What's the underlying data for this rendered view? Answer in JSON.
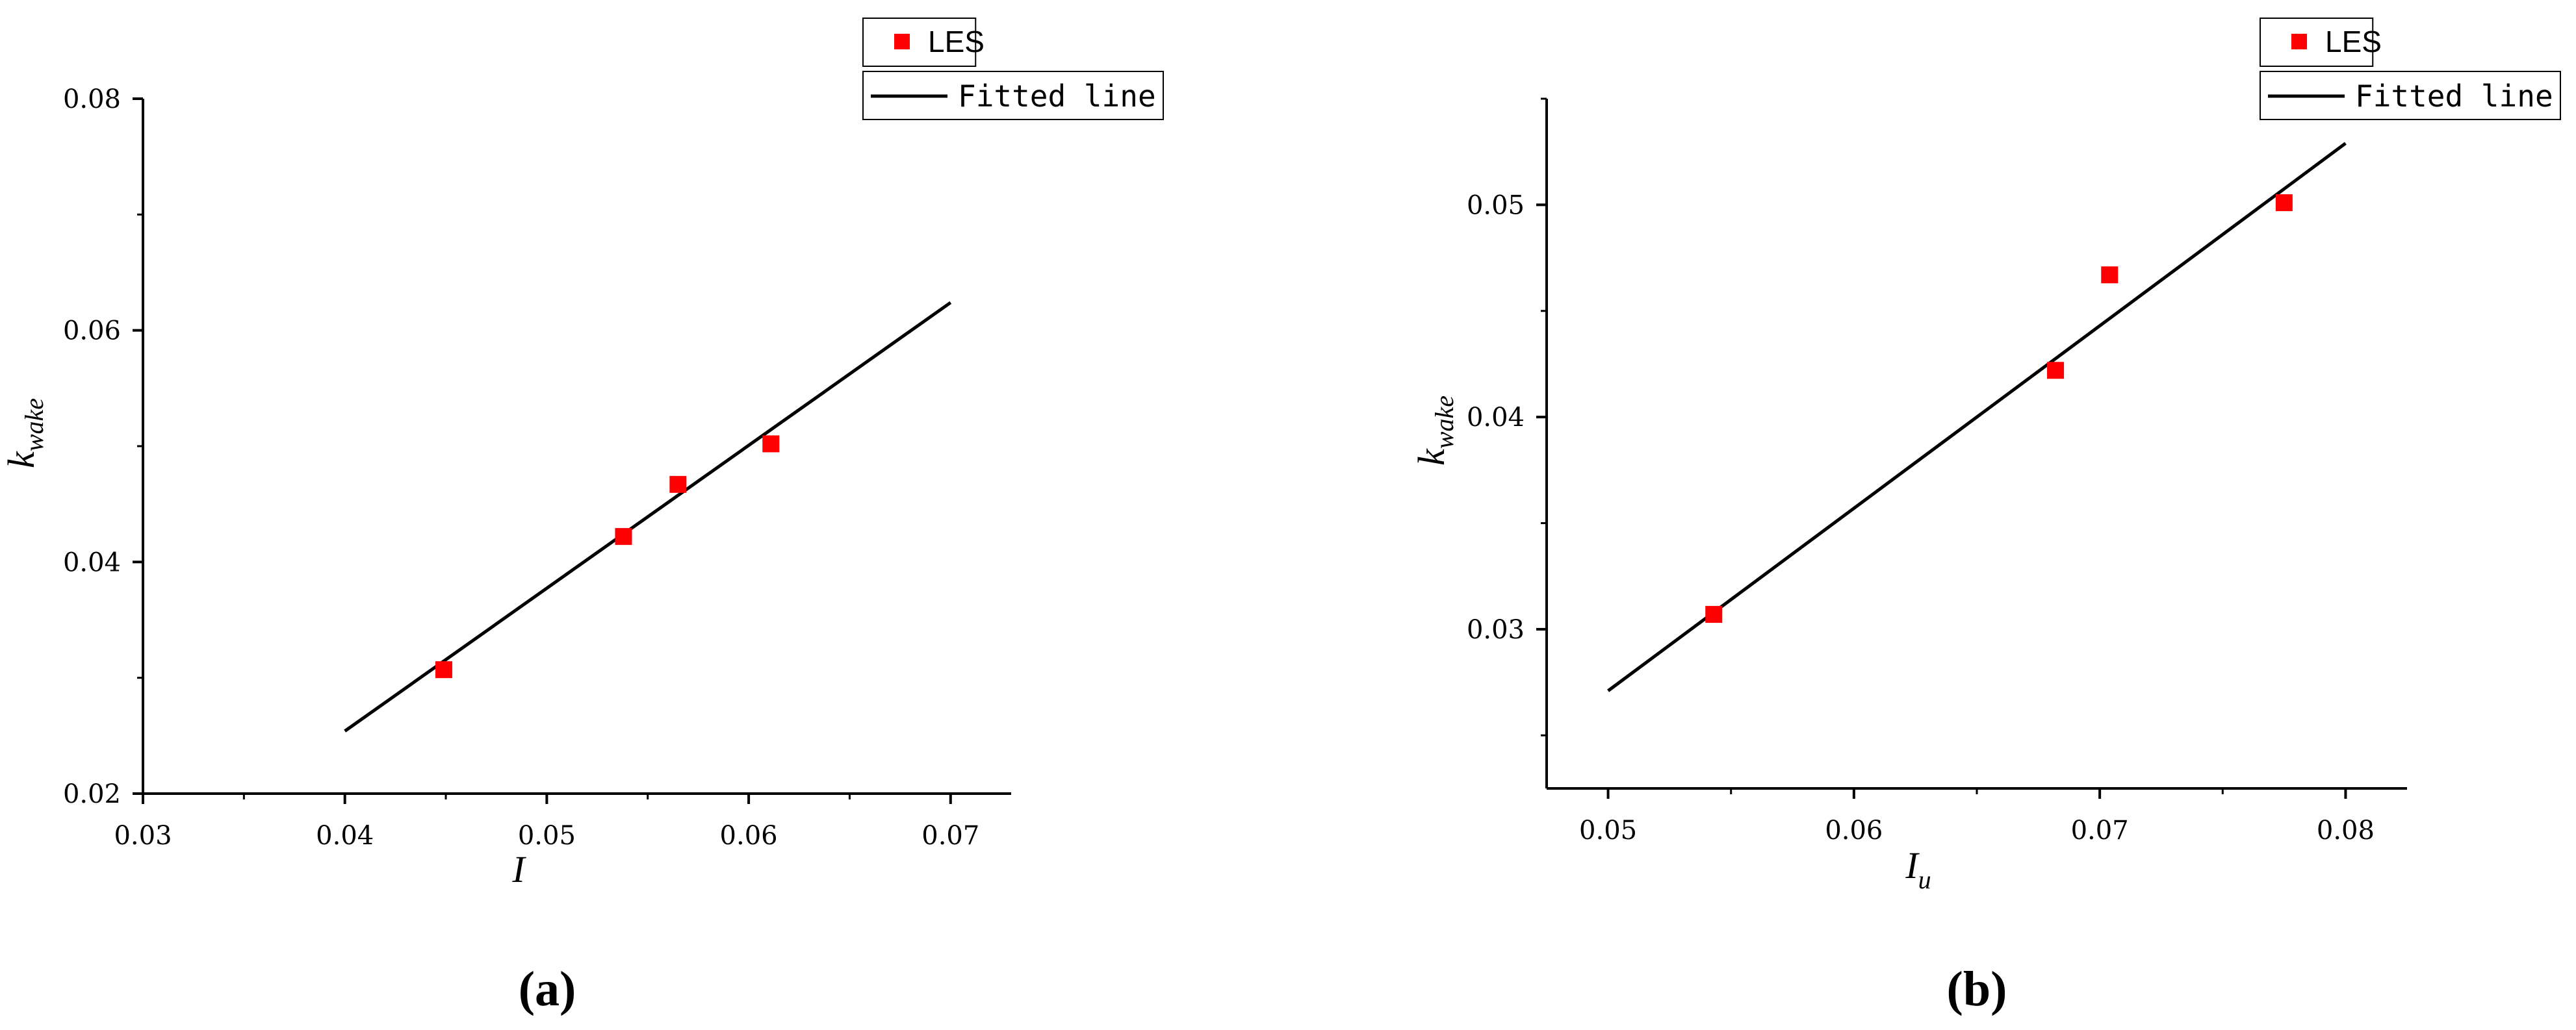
{
  "figure": {
    "panels": [
      {
        "caption": "(a)"
      },
      {
        "caption": "(b)"
      }
    ]
  },
  "colors": {
    "les_marker": "#ff0000",
    "fitted_line": "#000000",
    "axes": "#000000"
  },
  "chart_data": [
    {
      "type": "scatter",
      "panel": "(a)",
      "xlabel": "I",
      "ylabel": "k",
      "ylabel_sub": "wake",
      "xlim": [
        0.03,
        0.073
      ],
      "ylim": [
        0.02,
        0.08
      ],
      "xticks": [
        0.03,
        0.04,
        0.05,
        0.06,
        0.07
      ],
      "xtick_labels": [
        "0.03",
        "0.04",
        "0.05",
        "0.06",
        "0.07"
      ],
      "yticks": [
        0.02,
        0.04,
        0.06,
        0.08
      ],
      "ytick_labels": [
        "0.02",
        "0.04",
        "0.06",
        "0.08"
      ],
      "xminor": [
        0.035,
        0.045,
        0.055,
        0.065
      ],
      "yminor": [
        0.03,
        0.05,
        0.07
      ],
      "grid": false,
      "legend_position": "top-right",
      "series": [
        {
          "name": "LES",
          "kind": "scatter",
          "marker": "square",
          "color": "#ff0000",
          "x": [
            0.0449,
            0.0538,
            0.0565,
            0.0611
          ],
          "y": [
            0.0307,
            0.0422,
            0.0467,
            0.0502
          ]
        },
        {
          "name": "Fitted line",
          "kind": "line",
          "color": "#000000",
          "x": [
            0.04,
            0.07
          ],
          "y": [
            0.0254,
            0.0624
          ]
        }
      ]
    },
    {
      "type": "scatter",
      "panel": "(b)",
      "xlabel": "I",
      "xlabel_sub": "u",
      "ylabel": "k",
      "ylabel_sub": "wake",
      "xlim": [
        0.0475,
        0.0825
      ],
      "ylim": [
        0.0225,
        0.055
      ],
      "xticks": [
        0.05,
        0.06,
        0.07,
        0.08
      ],
      "xtick_labels": [
        "0.05",
        "0.06",
        "0.07",
        "0.08"
      ],
      "yticks": [
        0.03,
        0.04,
        0.05
      ],
      "ytick_labels": [
        "0.03",
        "0.04",
        "0.05"
      ],
      "xminor": [
        0.055,
        0.065,
        0.075
      ],
      "yminor": [
        0.025,
        0.035,
        0.045,
        0.055
      ],
      "grid": false,
      "legend_position": "top-right",
      "series": [
        {
          "name": "LES",
          "kind": "scatter",
          "marker": "square",
          "color": "#ff0000",
          "x": [
            0.0543,
            0.0682,
            0.0704,
            0.0775
          ],
          "y": [
            0.0307,
            0.0422,
            0.0467,
            0.0501
          ]
        },
        {
          "name": "Fitted line",
          "kind": "line",
          "color": "#000000",
          "x": [
            0.05,
            0.08
          ],
          "y": [
            0.0271,
            0.0529
          ]
        }
      ]
    }
  ]
}
